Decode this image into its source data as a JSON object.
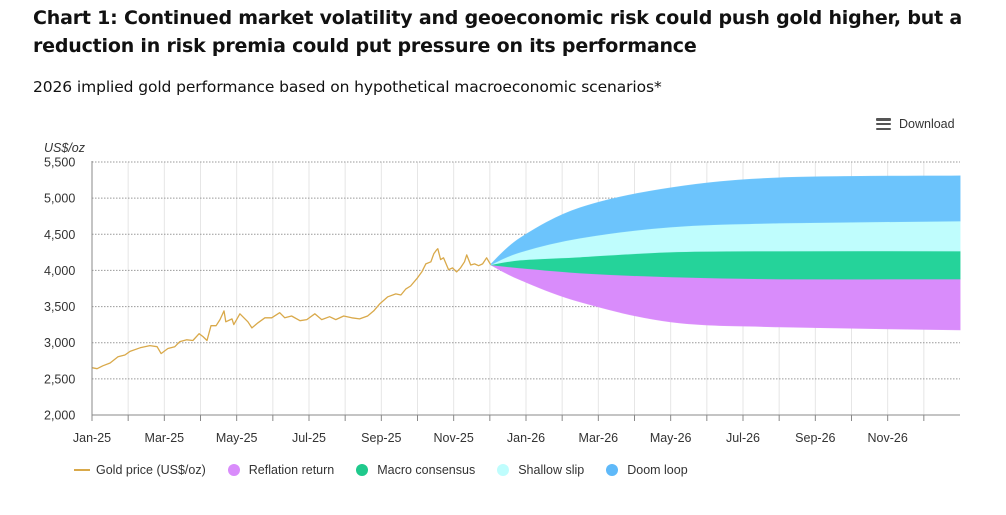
{
  "header": {
    "title": "Chart 1: Continued market volatility and geoeconomic risk could push gold higher, but a reduction in risk premia could put pressure on its performance",
    "subtitle": "2026 implied gold performance based on hypothetical macroeconomic scenarios*"
  },
  "toolbar": {
    "download_label": "Download",
    "download_icon": "menu-icon"
  },
  "chart_data": {
    "type": "area",
    "title": "2026 implied gold performance based on hypothetical macroeconomic scenarios*",
    "xlabel": "",
    "ylabel": "US$/oz",
    "ylim": [
      2000,
      5500
    ],
    "yticks": [
      2000,
      2500,
      3000,
      3500,
      4000,
      4500,
      5000,
      5500
    ],
    "ytick_labels": [
      "2,000",
      "2,500",
      "3,000",
      "3,500",
      "4,000",
      "4,500",
      "5,000",
      "5,500"
    ],
    "x_unit": "months since Jan-25",
    "xlim": [
      0,
      24
    ],
    "xticks": [
      0,
      1,
      2,
      3,
      4,
      5,
      6,
      7,
      8,
      9,
      10,
      11,
      12,
      13,
      14,
      15,
      16,
      17,
      18,
      19,
      20,
      21,
      22,
      23
    ],
    "xtick_labels": [
      {
        "at": 0,
        "label": "Jan-25"
      },
      {
        "at": 2,
        "label": "Mar-25"
      },
      {
        "at": 4,
        "label": "May-25"
      },
      {
        "at": 6,
        "label": "Jul-25"
      },
      {
        "at": 8,
        "label": "Sep-25"
      },
      {
        "at": 10,
        "label": "Nov-25"
      },
      {
        "at": 12,
        "label": "Jan-26"
      },
      {
        "at": 14,
        "label": "Mar-26"
      },
      {
        "at": 16,
        "label": "May-26"
      },
      {
        "at": 18,
        "label": "Jul-26"
      },
      {
        "at": 20,
        "label": "Sep-26"
      },
      {
        "at": 22,
        "label": "Nov-26"
      }
    ],
    "grid": {
      "horizontal": "dotted",
      "vertical": "solid-light"
    },
    "legend_position": "bottom-left",
    "series": [
      {
        "name": "Gold price (US$/oz)",
        "kind": "line",
        "color": "#D9A94A",
        "x": [
          0,
          0.14,
          0.3,
          0.5,
          0.72,
          0.91,
          1.05,
          1.33,
          1.6,
          1.8,
          1.91,
          2.1,
          2.29,
          2.43,
          2.62,
          2.79,
          2.96,
          3.07,
          3.18,
          3.29,
          3.43,
          3.54,
          3.65,
          3.7,
          3.87,
          3.92,
          4.09,
          4.31,
          4.42,
          4.59,
          4.78,
          4.97,
          5.19,
          5.33,
          5.52,
          5.75,
          5.94,
          6.16,
          6.35,
          6.57,
          6.74,
          6.96,
          7.18,
          7.4,
          7.62,
          7.79,
          7.96,
          8.18,
          8.4,
          8.54,
          8.68,
          8.81,
          8.98,
          9.12,
          9.23,
          9.37,
          9.45,
          9.53,
          9.56,
          9.64,
          9.72,
          9.86,
          9.97,
          10.08,
          10.19,
          10.3,
          10.36,
          10.47,
          10.58,
          10.69,
          10.8,
          10.91,
          11.02
        ],
        "values": [
          2655,
          2640,
          2680,
          2720,
          2805,
          2830,
          2880,
          2930,
          2960,
          2945,
          2850,
          2920,
          2945,
          3015,
          3040,
          3030,
          3125,
          3085,
          3030,
          3235,
          3235,
          3320,
          3440,
          3290,
          3330,
          3250,
          3400,
          3290,
          3205,
          3275,
          3345,
          3345,
          3415,
          3345,
          3370,
          3305,
          3320,
          3400,
          3320,
          3360,
          3320,
          3370,
          3345,
          3330,
          3370,
          3440,
          3540,
          3635,
          3675,
          3660,
          3745,
          3785,
          3885,
          3980,
          4090,
          4120,
          4230,
          4285,
          4300,
          4150,
          4175,
          4010,
          4035,
          3980,
          4035,
          4120,
          4215,
          4075,
          4090,
          4065,
          4090,
          4175,
          4080
        ]
      },
      {
        "name": "Reflation return",
        "kind": "band",
        "color": "#D98CFB",
        "x": [
          11.02,
          11.85,
          13.5,
          16.0,
          19.0,
          24.0
        ],
        "lower": [
          4080,
          3870,
          3566,
          3290,
          3221,
          3180
        ],
        "upper": [
          4080,
          4036,
          3967,
          3912,
          3884,
          3884
        ]
      },
      {
        "name": "Macro consensus",
        "kind": "band",
        "color": "#25D39A",
        "x": [
          11.02,
          11.85,
          13.5,
          16.0,
          19.0,
          24.0
        ],
        "lower": [
          4080,
          4036,
          3967,
          3912,
          3884,
          3884
        ],
        "upper": [
          4080,
          4146,
          4188,
          4257,
          4271,
          4271
        ]
      },
      {
        "name": "Shallow slip",
        "kind": "band",
        "color": "#BFFDFD",
        "x": [
          11.02,
          11.85,
          13.5,
          16.0,
          19.0,
          24.0
        ],
        "lower": [
          4080,
          4146,
          4188,
          4257,
          4271,
          4271
        ],
        "upper": [
          4080,
          4257,
          4450,
          4602,
          4657,
          4685
        ]
      },
      {
        "name": "Doom loop",
        "kind": "band",
        "color": "#6CC4FC",
        "x": [
          11.02,
          11.85,
          13.5,
          16.0,
          19.0,
          24.0
        ],
        "lower": [
          4080,
          4257,
          4450,
          4602,
          4657,
          4685
        ],
        "upper": [
          4080,
          4450,
          4865,
          5141,
          5279,
          5307
        ]
      }
    ]
  },
  "legend": {
    "items": [
      {
        "label": "Gold price (US$/oz)",
        "color": "#D9A94A",
        "shape": "line"
      },
      {
        "label": "Reflation return",
        "color": "#D98CFB",
        "shape": "dot"
      },
      {
        "label": "Macro consensus",
        "color": "#1FC98C",
        "shape": "dot"
      },
      {
        "label": "Shallow slip",
        "color": "#BFFDFD",
        "shape": "dot"
      },
      {
        "label": "Doom loop",
        "color": "#5FB9F9",
        "shape": "dot"
      }
    ]
  }
}
